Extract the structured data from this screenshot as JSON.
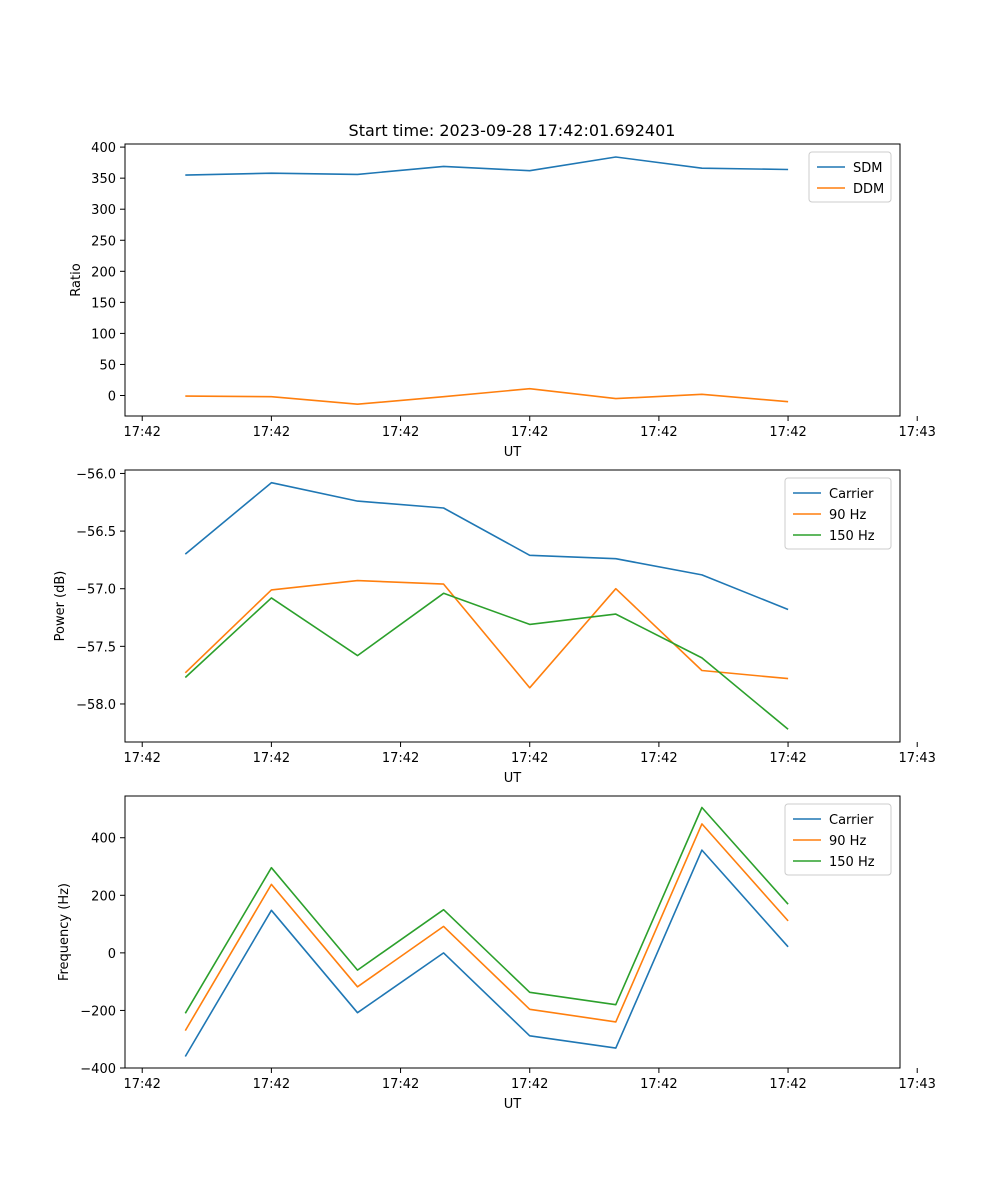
{
  "title": "Start time: 2023-09-28 17:42:01.692401",
  "colors": {
    "blue": "#1f77b4",
    "orange": "#ff7f0e",
    "green": "#2ca02c"
  },
  "chart_data": [
    {
      "type": "line",
      "title": "Start time: 2023-09-28 17:42:01.692401",
      "xlabel": "UT",
      "ylabel": "Ratio",
      "x": [
        1,
        2,
        3,
        4,
        5,
        6,
        7,
        8
      ],
      "xlim": [
        0.3,
        9.3
      ],
      "xticks": [
        0.5,
        2,
        3.5,
        5,
        6.5,
        8,
        9.5
      ],
      "xtick_labels": [
        "17:42",
        "17:42",
        "17:42",
        "17:42",
        "17:42",
        "17:42",
        "17:43"
      ],
      "ylim": [
        -33,
        405
      ],
      "yticks": [
        0,
        50,
        100,
        150,
        200,
        250,
        300,
        350,
        400
      ],
      "ytick_labels": [
        "0",
        "50",
        "100",
        "150",
        "200",
        "250",
        "300",
        "350",
        "400"
      ],
      "legend": "top-right",
      "series": [
        {
          "name": "SDM",
          "color": "#1f77b4",
          "values": [
            355,
            358,
            356,
            369,
            362,
            384,
            366,
            364
          ]
        },
        {
          "name": "DDM",
          "color": "#ff7f0e",
          "values": [
            -1,
            -2,
            -14,
            -2,
            11,
            -5,
            2,
            -10
          ]
        }
      ]
    },
    {
      "type": "line",
      "xlabel": "UT",
      "ylabel": "Power (dB)",
      "x": [
        1,
        2,
        3,
        4,
        5,
        6,
        7,
        8
      ],
      "xlim": [
        0.3,
        9.3
      ],
      "xticks": [
        0.5,
        2,
        3.5,
        5,
        6.5,
        8,
        9.5
      ],
      "xtick_labels": [
        "17:42",
        "17:42",
        "17:42",
        "17:42",
        "17:42",
        "17:42",
        "17:43"
      ],
      "ylim": [
        -58.33,
        -55.97
      ],
      "yticks": [
        -56.0,
        -56.5,
        -57.0,
        -57.5,
        -58.0
      ],
      "ytick_labels": [
        "−56.0",
        "−56.5",
        "−57.0",
        "−57.5",
        "−58.0"
      ],
      "legend": "top-right",
      "series": [
        {
          "name": "Carrier",
          "color": "#1f77b4",
          "values": [
            -56.7,
            -56.08,
            -56.24,
            -56.3,
            -56.71,
            -56.74,
            -56.88,
            -57.18
          ]
        },
        {
          "name": "90 Hz",
          "color": "#ff7f0e",
          "values": [
            -57.73,
            -57.01,
            -56.93,
            -56.96,
            -57.86,
            -57.0,
            -57.71,
            -57.78
          ]
        },
        {
          "name": "150 Hz",
          "color": "#2ca02c",
          "values": [
            -57.77,
            -57.08,
            -57.58,
            -57.04,
            -57.31,
            -57.22,
            -57.6,
            -58.22
          ]
        }
      ]
    },
    {
      "type": "line",
      "xlabel": "UT",
      "ylabel": "Frequency (Hz)",
      "x": [
        1,
        2,
        3,
        4,
        5,
        6,
        7,
        8
      ],
      "xlim": [
        0.3,
        9.3
      ],
      "xticks": [
        0.5,
        2,
        3.5,
        5,
        6.5,
        8,
        9.5
      ],
      "xtick_labels": [
        "17:42",
        "17:42",
        "17:42",
        "17:42",
        "17:42",
        "17:42",
        "17:43"
      ],
      "ylim": [
        -400,
        545
      ],
      "yticks": [
        400,
        200,
        0,
        -200,
        -400
      ],
      "ytick_labels": [
        "400",
        "200",
        "0",
        "−200",
        "−400"
      ],
      "legend": "top-right",
      "series": [
        {
          "name": "Carrier",
          "color": "#1f77b4",
          "values": [
            -360,
            148,
            -208,
            0,
            -288,
            -331,
            357,
            21
          ]
        },
        {
          "name": "90 Hz",
          "color": "#ff7f0e",
          "values": [
            -270,
            238,
            -118,
            92,
            -196,
            -240,
            448,
            111
          ]
        },
        {
          "name": "150 Hz",
          "color": "#2ca02c",
          "values": [
            -210,
            296,
            -60,
            150,
            -137,
            -180,
            505,
            169
          ]
        }
      ]
    }
  ]
}
